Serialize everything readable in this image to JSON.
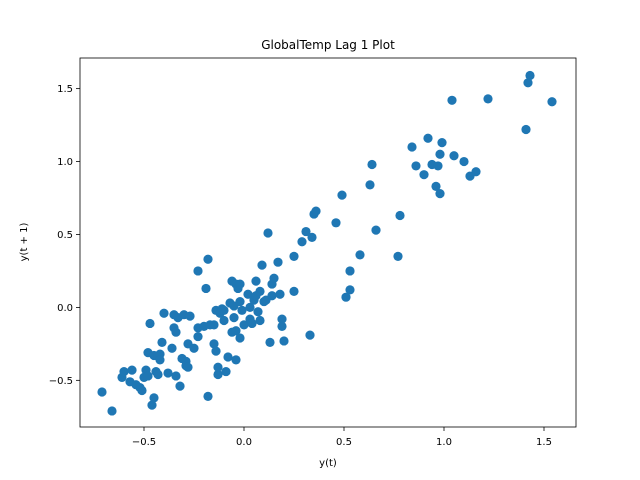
{
  "chart_data": {
    "type": "scatter",
    "title": "GlobalTemp Lag 1 Plot",
    "xlabel": "y(t)",
    "ylabel": "y(t + 1)",
    "xlim": [
      -0.82,
      1.66
    ],
    "ylim": [
      -0.82,
      1.71
    ],
    "xticks": [
      -0.5,
      0.0,
      0.5,
      1.0,
      1.5
    ],
    "xtick_labels": [
      "−0.5",
      "0.0",
      "0.5",
      "1.0",
      "1.5"
    ],
    "yticks": [
      -0.5,
      0.0,
      0.5,
      1.0,
      1.5
    ],
    "ytick_labels": [
      "−0.5",
      "0.0",
      "0.5",
      "1.0",
      "1.5"
    ],
    "grid": false,
    "color": "#1f77b4",
    "series": [
      {
        "points": [
          [
            -0.71,
            -0.58
          ],
          [
            -0.66,
            -0.71
          ],
          [
            -0.61,
            -0.48
          ],
          [
            -0.6,
            -0.44
          ],
          [
            -0.57,
            -0.51
          ],
          [
            -0.56,
            -0.43
          ],
          [
            -0.54,
            -0.53
          ],
          [
            -0.52,
            -0.55
          ],
          [
            -0.51,
            -0.57
          ],
          [
            -0.5,
            -0.48
          ],
          [
            -0.49,
            -0.43
          ],
          [
            -0.48,
            -0.47
          ],
          [
            -0.48,
            -0.31
          ],
          [
            -0.47,
            -0.11
          ],
          [
            -0.46,
            -0.67
          ],
          [
            -0.45,
            -0.62
          ],
          [
            -0.45,
            -0.33
          ],
          [
            -0.44,
            -0.44
          ],
          [
            -0.43,
            -0.46
          ],
          [
            -0.42,
            -0.32
          ],
          [
            -0.42,
            -0.36
          ],
          [
            -0.41,
            -0.24
          ],
          [
            -0.4,
            -0.04
          ],
          [
            -0.38,
            -0.45
          ],
          [
            -0.36,
            -0.28
          ],
          [
            -0.35,
            -0.14
          ],
          [
            -0.35,
            -0.05
          ],
          [
            -0.34,
            -0.47
          ],
          [
            -0.34,
            -0.17
          ],
          [
            -0.33,
            -0.07
          ],
          [
            -0.32,
            -0.54
          ],
          [
            -0.31,
            -0.35
          ],
          [
            -0.3,
            -0.05
          ],
          [
            -0.29,
            -0.37
          ],
          [
            -0.29,
            -0.4
          ],
          [
            -0.28,
            -0.41
          ],
          [
            -0.28,
            -0.25
          ],
          [
            -0.27,
            -0.06
          ],
          [
            -0.25,
            -0.28
          ],
          [
            -0.23,
            -0.2
          ],
          [
            -0.23,
            -0.14
          ],
          [
            -0.23,
            0.25
          ],
          [
            -0.2,
            -0.13
          ],
          [
            -0.19,
            0.13
          ],
          [
            -0.18,
            -0.61
          ],
          [
            -0.18,
            0.33
          ],
          [
            -0.17,
            -0.12
          ],
          [
            -0.15,
            -0.25
          ],
          [
            -0.15,
            -0.12
          ],
          [
            -0.14,
            -0.02
          ],
          [
            -0.14,
            -0.3
          ],
          [
            -0.13,
            -0.46
          ],
          [
            -0.13,
            -0.41
          ],
          [
            -0.12,
            -0.04
          ],
          [
            -0.11,
            -0.01
          ],
          [
            -0.1,
            -0.09
          ],
          [
            -0.1,
            -0.02
          ],
          [
            -0.09,
            -0.44
          ],
          [
            -0.08,
            -0.34
          ],
          [
            -0.07,
            0.03
          ],
          [
            -0.06,
            0.18
          ],
          [
            -0.06,
            -0.17
          ],
          [
            -0.05,
            -0.07
          ],
          [
            -0.05,
            0.01
          ],
          [
            -0.04,
            0.16
          ],
          [
            -0.04,
            -0.16
          ],
          [
            -0.04,
            -0.36
          ],
          [
            -0.03,
            0.13
          ],
          [
            -0.02,
            -0.21
          ],
          [
            -0.02,
            0.16
          ],
          [
            -0.02,
            0.04
          ],
          [
            -0.01,
            -0.02
          ],
          [
            0.0,
            -0.12
          ],
          [
            0.02,
            0.09
          ],
          [
            0.03,
            -0.08
          ],
          [
            0.03,
            0.0
          ],
          [
            0.04,
            -0.11
          ],
          [
            0.05,
            0.05
          ],
          [
            0.06,
            0.08
          ],
          [
            0.06,
            0.18
          ],
          [
            0.07,
            -0.03
          ],
          [
            0.08,
            0.11
          ],
          [
            0.08,
            -0.09
          ],
          [
            0.09,
            0.29
          ],
          [
            0.1,
            0.04
          ],
          [
            0.11,
            0.05
          ],
          [
            0.12,
            0.51
          ],
          [
            0.13,
            -0.24
          ],
          [
            0.14,
            0.16
          ],
          [
            0.14,
            0.08
          ],
          [
            0.15,
            0.2
          ],
          [
            0.17,
            0.31
          ],
          [
            0.18,
            0.09
          ],
          [
            0.19,
            -0.08
          ],
          [
            0.19,
            -0.13
          ],
          [
            0.2,
            -0.23
          ],
          [
            0.25,
            0.11
          ],
          [
            0.25,
            0.35
          ],
          [
            0.29,
            0.45
          ],
          [
            0.31,
            0.52
          ],
          [
            0.33,
            -0.19
          ],
          [
            0.34,
            0.48
          ],
          [
            0.35,
            0.64
          ],
          [
            0.36,
            0.66
          ],
          [
            0.46,
            0.58
          ],
          [
            0.49,
            0.77
          ],
          [
            0.51,
            0.07
          ],
          [
            0.53,
            0.12
          ],
          [
            0.53,
            0.25
          ],
          [
            0.58,
            0.36
          ],
          [
            0.63,
            0.84
          ],
          [
            0.64,
            0.98
          ],
          [
            0.66,
            0.53
          ],
          [
            0.77,
            0.35
          ],
          [
            0.78,
            0.63
          ],
          [
            0.84,
            1.1
          ],
          [
            0.86,
            0.97
          ],
          [
            0.9,
            0.91
          ],
          [
            0.92,
            1.16
          ],
          [
            0.94,
            0.98
          ],
          [
            0.96,
            0.83
          ],
          [
            0.97,
            0.97
          ],
          [
            0.98,
            0.78
          ],
          [
            0.98,
            1.05
          ],
          [
            0.99,
            1.13
          ],
          [
            1.04,
            1.42
          ],
          [
            1.05,
            1.04
          ],
          [
            1.1,
            1.0
          ],
          [
            1.13,
            0.9
          ],
          [
            1.16,
            0.93
          ],
          [
            1.22,
            1.43
          ],
          [
            1.41,
            1.22
          ],
          [
            1.42,
            1.54
          ],
          [
            1.43,
            1.59
          ],
          [
            1.54,
            1.41
          ]
        ]
      }
    ]
  }
}
